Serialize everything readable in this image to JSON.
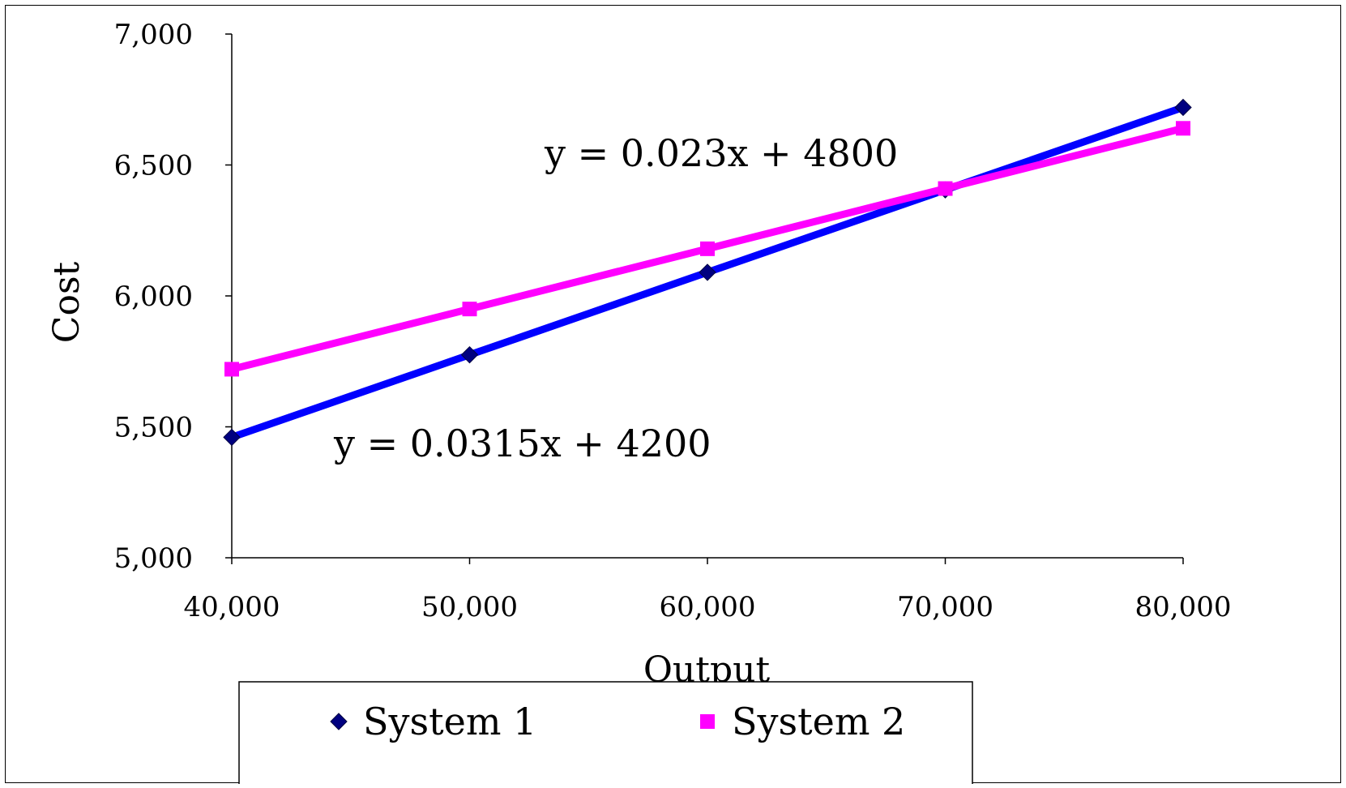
{
  "chart_data": {
    "type": "line",
    "title": "",
    "xlabel": "Output",
    "ylabel": "Cost",
    "x": [
      40000,
      50000,
      60000,
      70000,
      80000
    ],
    "x_tick_labels": [
      "40,000",
      "50,000",
      "60,000",
      "70,000",
      "80,000"
    ],
    "y_tick_values": [
      5000,
      5500,
      6000,
      6500,
      7000
    ],
    "y_tick_labels": [
      "5,000",
      "5,500",
      "6,000",
      "6,500",
      "7,000"
    ],
    "xlim": [
      40000,
      80000
    ],
    "ylim": [
      5000,
      7000
    ],
    "grid": false,
    "legend_position": "bottom",
    "series": [
      {
        "name": "System 1",
        "values": [
          5460,
          5775,
          6090,
          6405,
          6720
        ],
        "color": "#0000ff",
        "marker_color": "#000080",
        "marker": "diamond"
      },
      {
        "name": "System 2",
        "values": [
          5720,
          5950,
          6180,
          6410,
          6640
        ],
        "color": "#ff00ff",
        "marker_color": "#ff00ff",
        "marker": "square"
      }
    ],
    "annotations": [
      {
        "text": "y = 0.023x + 4800"
      },
      {
        "text": "y = 0.0315x + 4200"
      }
    ]
  }
}
